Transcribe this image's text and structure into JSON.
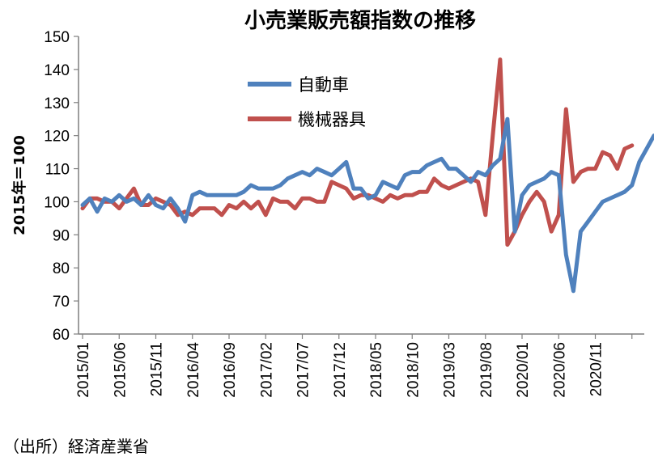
{
  "chart_data": {
    "type": "line",
    "title": "小売業販売額指数の推移",
    "ylabel": "2015年＝100",
    "xlabel": "",
    "ylim": [
      60,
      150
    ],
    "yticks": [
      60,
      70,
      80,
      90,
      100,
      110,
      120,
      130,
      140,
      150
    ],
    "xtick_labels": [
      "2015/01",
      "2015/06",
      "2015/11",
      "2016/04",
      "2016/09",
      "2017/02",
      "2017/07",
      "2017/12",
      "2018/05",
      "2018/10",
      "2019/03",
      "2019/08",
      "2020/01",
      "2020/06",
      "2020/11"
    ],
    "grid": "none",
    "legend_position": "upper-middle",
    "source": "（出所）経済産業省",
    "series": [
      {
        "name": "自動車",
        "color": "#4f81bd",
        "values": [
          99,
          101,
          97,
          101,
          100,
          102,
          100,
          101,
          99,
          102,
          99,
          98,
          101,
          98,
          94,
          102,
          103,
          102,
          102,
          102,
          102,
          102,
          103,
          105,
          104,
          104,
          104,
          105,
          107,
          108,
          109,
          108,
          110,
          109,
          108,
          110,
          112,
          104,
          104,
          101,
          102,
          106,
          105,
          104,
          108,
          109,
          109,
          111,
          112,
          113,
          110,
          110,
          108,
          106,
          109,
          108,
          111,
          113,
          125,
          91,
          102,
          105,
          106,
          107,
          109,
          108,
          84,
          73,
          91,
          94,
          97,
          100,
          101,
          102,
          103,
          105,
          112,
          116,
          120
        ]
      },
      {
        "name": "機械器具",
        "color": "#c0504d",
        "values": [
          98,
          101,
          101,
          100,
          100,
          98,
          101,
          104,
          99,
          99,
          101,
          100,
          99,
          96,
          97,
          96,
          98,
          98,
          98,
          96,
          99,
          98,
          100,
          98,
          100,
          96,
          101,
          100,
          100,
          98,
          101,
          101,
          100,
          100,
          106,
          105,
          104,
          101,
          102,
          102,
          101,
          100,
          102,
          101,
          102,
          102,
          103,
          103,
          107,
          105,
          104,
          105,
          106,
          107,
          106,
          96,
          120,
          143,
          87,
          91,
          96,
          100,
          103,
          100,
          91,
          96,
          128,
          106,
          109,
          110,
          110,
          115,
          114,
          110,
          116,
          117
        ]
      }
    ]
  }
}
